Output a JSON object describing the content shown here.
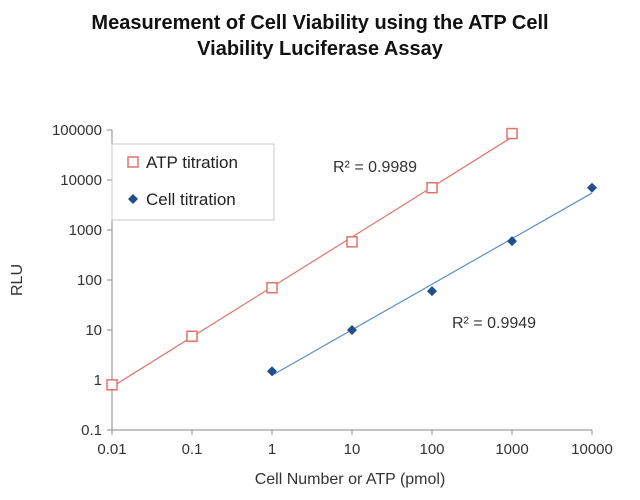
{
  "chart_data": {
    "type": "scatter",
    "title_line1": "Measurement of Cell Viability using the ATP Cell",
    "title_line2": "Viability Luciferase Assay",
    "xlabel": "Cell Number or ATP (pmol)",
    "ylabel": "RLU",
    "x_scale": "log",
    "y_scale": "log",
    "xlim": [
      0.01,
      10000
    ],
    "ylim": [
      0.1,
      100000
    ],
    "x_ticks": [
      "0.01",
      "0.1",
      "1",
      "10",
      "100",
      "1000",
      "10000"
    ],
    "y_ticks": [
      "0.1",
      "1",
      "10",
      "100",
      "1000",
      "10000",
      "100000"
    ],
    "grid": false,
    "legend_position": "top-left",
    "series": [
      {
        "name": "ATP titration",
        "marker": "open-square",
        "color": "#e0736b",
        "trendline": true,
        "r2_label": "R² = 0.9989",
        "x": [
          0.01,
          0.1,
          1,
          10,
          100,
          1000
        ],
        "y": [
          0.8,
          7.5,
          70,
          580,
          7000,
          85000
        ]
      },
      {
        "name": "Cell titration",
        "marker": "filled-diamond",
        "color": "#1f4e8c",
        "line_color": "#5b8ec9",
        "trendline": true,
        "r2_label": "R² = 0.9949",
        "x": [
          1,
          10,
          100,
          1000,
          10000
        ],
        "y": [
          1.5,
          10,
          60,
          600,
          7000
        ]
      }
    ]
  }
}
